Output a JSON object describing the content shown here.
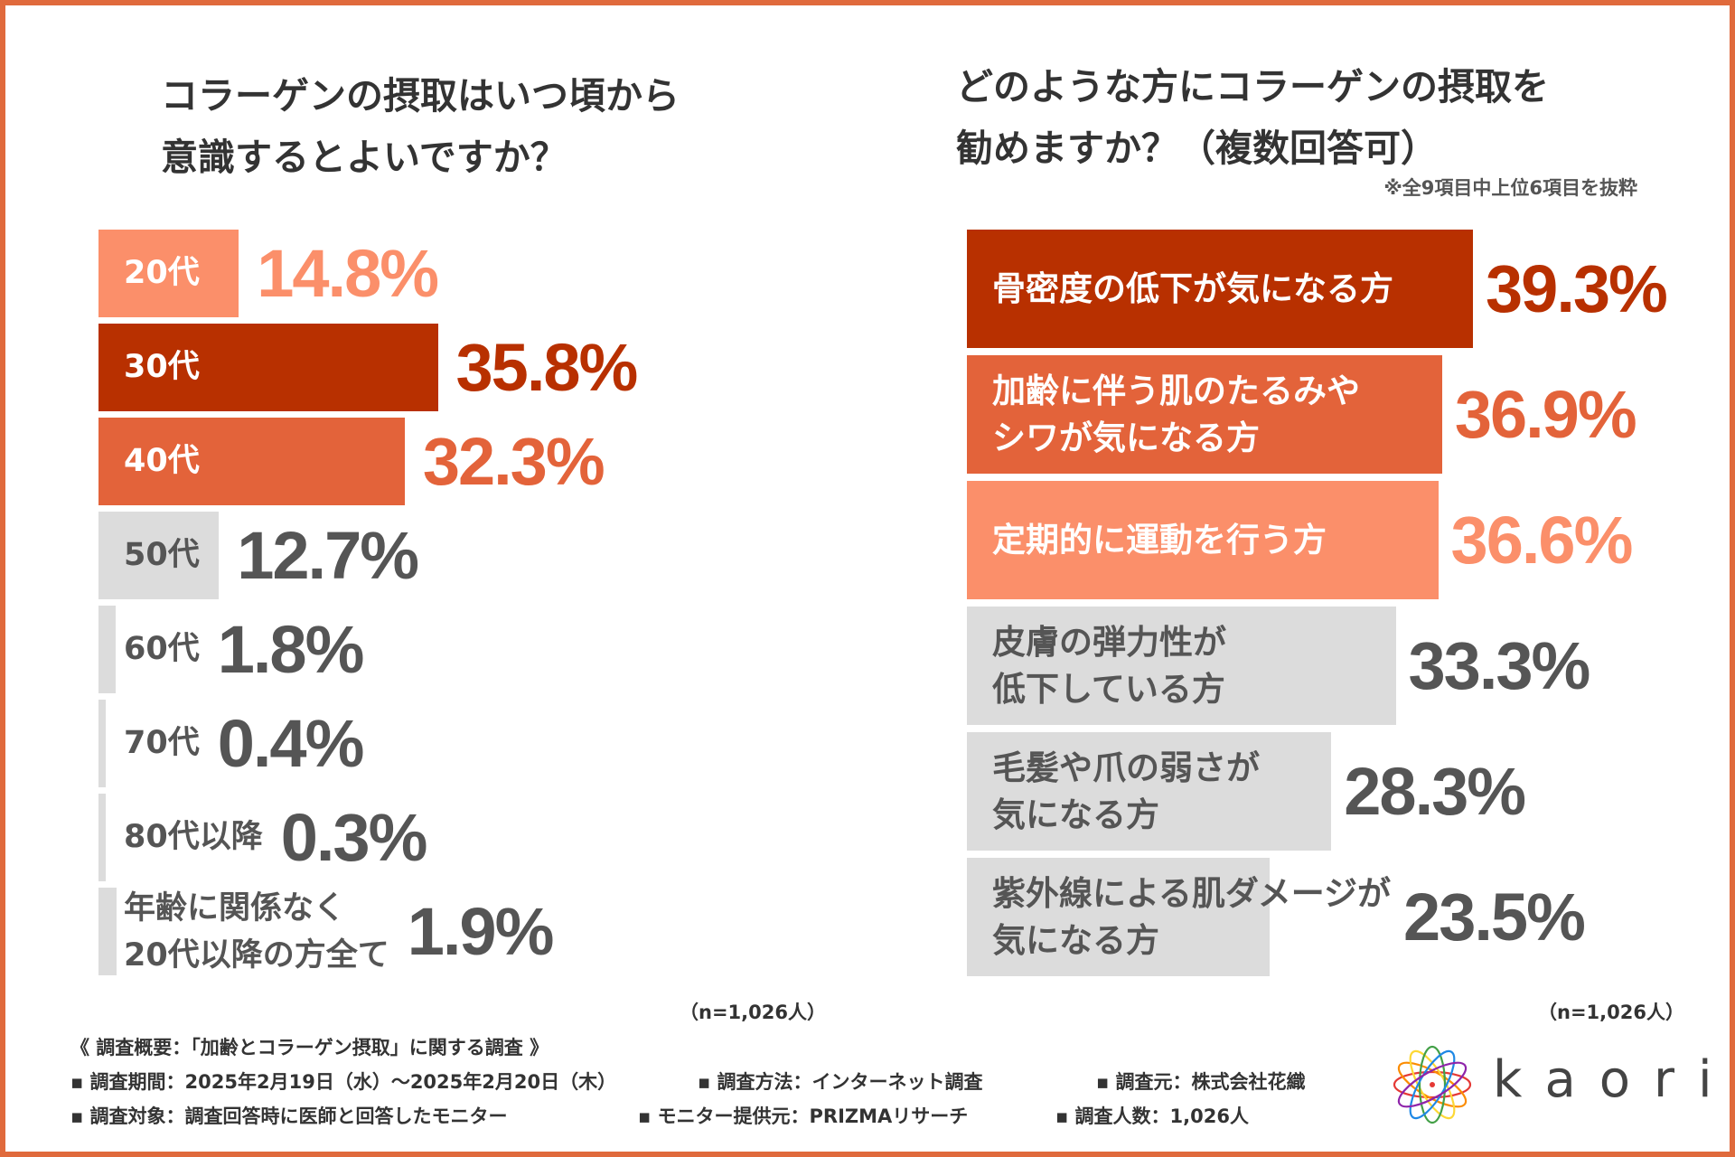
{
  "left_title": [
    "コラーゲンの摂取はいつ頃から",
    "意識するとよいですか？"
  ],
  "right_title": [
    "どのような方にコラーゲンの摂取を",
    "勧めますか？（複数回答可）"
  ],
  "right_note": "※全9項目中上位6項目を抜粋",
  "n_label": "（n=1,026人）",
  "chart_data": [
    {
      "type": "bar",
      "orientation": "horizontal",
      "title": "コラーゲンの摂取はいつ頃から意識するとよいですか？",
      "categories": [
        "20代",
        "30代",
        "40代",
        "50代",
        "60代",
        "70代",
        "80代以降",
        "年齢に関係なく\n20代以降の方全て"
      ],
      "values": [
        14.8,
        35.8,
        32.3,
        12.7,
        1.8,
        0.4,
        0.3,
        1.9
      ],
      "value_labels": [
        "14.8%",
        "35.8%",
        "32.3%",
        "12.7%",
        "1.8%",
        "0.4%",
        "0.3%",
        "1.9%"
      ],
      "bar_colors": [
        "#fb8f6a",
        "#b83000",
        "#e3633a",
        "#dcdcdc",
        "#dcdcdc",
        "#dcdcdc",
        "#dcdcdc",
        "#dcdcdc"
      ],
      "label_colors": [
        "#ffffff",
        "#ffffff",
        "#ffffff",
        "#555555",
        "#555555",
        "#555555",
        "#555555",
        "#555555"
      ],
      "value_colors": [
        "#fb8f6a",
        "#b83000",
        "#e3633a",
        "#555555",
        "#555555",
        "#555555",
        "#555555",
        "#555555"
      ],
      "unit": "%",
      "n": "n=1,026人"
    },
    {
      "type": "bar",
      "orientation": "horizontal",
      "title": "どのような方にコラーゲンの摂取を勧めますか？（複数回答可）",
      "categories": [
        "骨密度の低下が気になる方",
        "加齢に伴う肌のたるみや\nシワが気になる方",
        "定期的に運動を行う方",
        "皮膚の弾力性が\n低下している方",
        "毛髪や爪の弱さが\n気になる方",
        "紫外線による肌ダメージが\n気になる方"
      ],
      "values": [
        39.3,
        36.9,
        36.6,
        33.3,
        28.3,
        23.5
      ],
      "value_labels": [
        "39.3%",
        "36.9%",
        "36.6%",
        "33.3%",
        "28.3%",
        "23.5%"
      ],
      "bar_colors": [
        "#b83000",
        "#e3633a",
        "#fb8f6a",
        "#dcdcdc",
        "#dcdcdc",
        "#dcdcdc"
      ],
      "label_colors": [
        "#ffffff",
        "#ffffff",
        "#ffffff",
        "#555555",
        "#555555",
        "#555555"
      ],
      "value_colors": [
        "#b83000",
        "#e3633a",
        "#fb8f6a",
        "#555555",
        "#555555",
        "#555555"
      ],
      "unit": "%",
      "n": "n=1,026人"
    }
  ],
  "footer": {
    "heading": "《 調査概要：「加齢とコラーゲン摂取」に関する調査 》",
    "period": "▪ 調査期間：2025年2月19日（水）～2025年2月20日（木）",
    "method": "▪ 調査方法：インターネット調査",
    "source": "▪ 調査元：株式会社花織",
    "target": "▪ 調査対象：調査回答時に医師と回答したモニター",
    "provider": "▪ モニター提供元：PRIZMAリサーチ",
    "count": "▪ 調査人数：1,026人"
  },
  "logo_text": "kaori",
  "colors": {
    "frame": "#e06a3c",
    "dark": "#b83000",
    "mid": "#e3633a",
    "light": "#fb8f6a",
    "gray": "#dcdcdc"
  }
}
